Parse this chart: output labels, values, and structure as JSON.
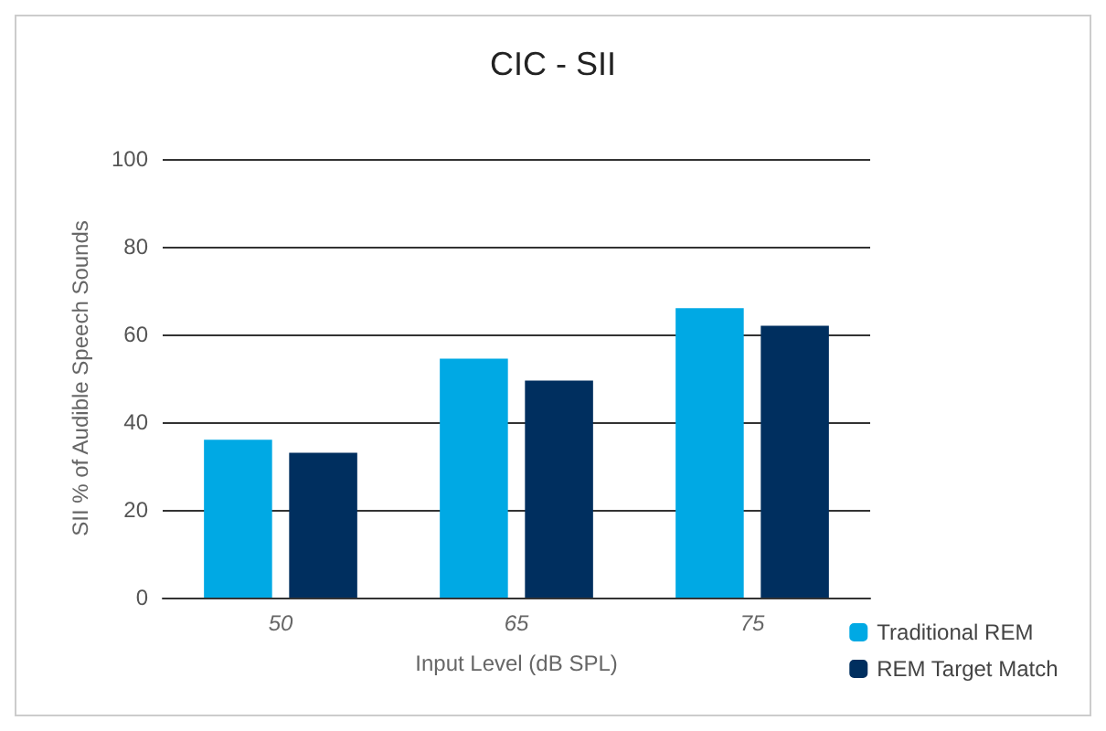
{
  "chart_data": {
    "type": "bar",
    "title": "CIC - SII",
    "xlabel": "Input Level (dB SPL)",
    "ylabel": "SII % of Audible Speech Sounds",
    "categories": [
      "50",
      "65",
      "75"
    ],
    "series": [
      {
        "name": "Traditional REM",
        "color": "#00a9e4",
        "values": [
          36,
          54.5,
          66
        ]
      },
      {
        "name": "REM Target Match",
        "color": "#002f5f",
        "values": [
          33,
          49.5,
          62
        ]
      }
    ],
    "ylim": [
      0,
      100
    ],
    "yticks": [
      0,
      20,
      40,
      60,
      80,
      100
    ],
    "grid": "y",
    "legend": "bottom right"
  }
}
